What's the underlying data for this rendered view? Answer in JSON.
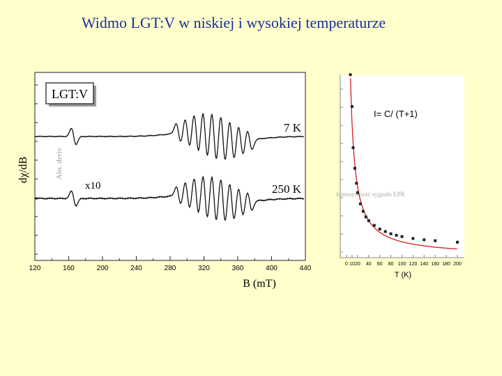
{
  "slide": {
    "title": "Widmo LGT:V w niskiej i wysokiej temperaturze"
  },
  "chart_data": [
    {
      "type": "line",
      "panel": "epr-spectra",
      "sample_label": "LGT:V",
      "xlabel": "B (mT)",
      "ylabel": "dχ/dB",
      "ylabel_faded": "Abs. deriv.",
      "xlim": [
        120,
        440
      ],
      "x_ticks": [
        120,
        160,
        200,
        240,
        280,
        320,
        360,
        400,
        440
      ],
      "series": [
        {
          "name": "7 K",
          "label": "7 K"
        },
        {
          "name": "250 K",
          "label": "250 K",
          "multiplier": "x10"
        }
      ],
      "annotations": [
        "x10"
      ],
      "colors": {
        "trace": "#111111",
        "frame": "#222222"
      }
    },
    {
      "type": "scatter",
      "panel": "intensity-vs-temperature",
      "xlabel": "T (K)",
      "xlim": [
        0,
        200
      ],
      "ylim": [
        0,
        1
      ],
      "x_ticks": [
        0,
        10,
        20,
        40,
        60,
        80,
        100,
        120,
        140,
        160,
        180,
        200
      ],
      "fit_label": "I= C/ (T+1)",
      "faded_ylabel": "Intensywność sygnału EPR",
      "points_x": [
        7,
        10,
        12,
        15,
        18,
        20,
        25,
        30,
        35,
        40,
        50,
        60,
        70,
        80,
        90,
        100,
        120,
        140,
        160,
        200
      ],
      "points_y": [
        0.97,
        0.8,
        0.58,
        0.47,
        0.39,
        0.34,
        0.28,
        0.24,
        0.21,
        0.19,
        0.165,
        0.145,
        0.132,
        0.12,
        0.112,
        0.105,
        0.095,
        0.088,
        0.083,
        0.075
      ],
      "fit_C": 7.8,
      "fit_T0": 1,
      "colors": {
        "points": "#222222",
        "fit": "#d42020"
      }
    }
  ]
}
